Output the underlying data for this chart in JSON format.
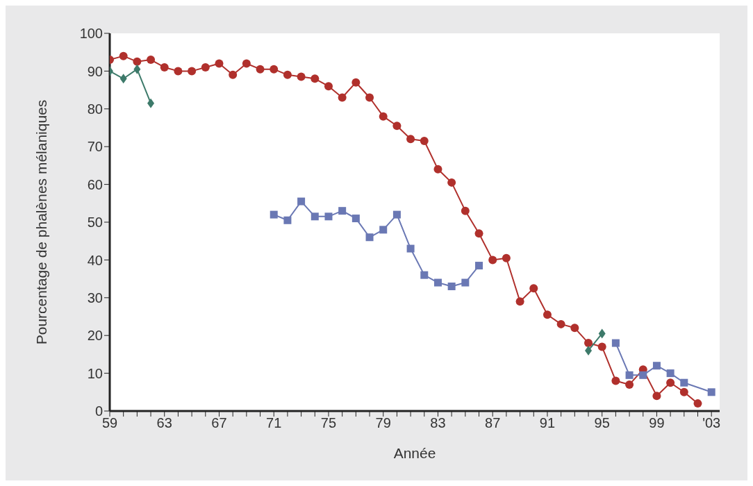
{
  "chart_data": {
    "type": "line",
    "xlabel": "Année",
    "ylabel": "Pourcentage de phalènes mélaniques",
    "series": [
      {
        "color": "#b0302c",
        "marker": "circle",
        "x": [
          1959,
          1960,
          1961,
          1962,
          1963,
          1964,
          1965,
          1966,
          1967,
          1968,
          1969,
          1970,
          1971,
          1972,
          1973,
          1974,
          1975,
          1976,
          1977,
          1978,
          1979,
          1980,
          1981,
          1982,
          1983,
          1984,
          1985,
          1986,
          1987,
          1988,
          1989,
          1990,
          1991,
          1992,
          1993,
          1994,
          1995,
          1996,
          1997,
          1998,
          1999,
          2000,
          2001,
          2002
        ],
        "values": [
          93,
          94,
          92.5,
          93,
          91,
          90,
          90,
          91,
          92,
          89,
          92,
          90.5,
          90.5,
          89,
          88.5,
          88,
          86,
          83,
          87,
          83,
          78,
          75.5,
          72,
          71.5,
          64,
          60.5,
          53,
          47,
          40,
          40.5,
          29,
          32.5,
          25.5,
          23,
          22,
          18,
          17,
          8,
          7,
          11,
          4,
          7.5,
          5,
          2
        ]
      },
      {
        "color": "#3d7a6a",
        "marker": "diamond",
        "x": [
          1959,
          1960,
          1961,
          1962,
          1978,
          1994,
          1995
        ],
        "values": [
          90,
          88,
          90.5,
          81.5,
          null,
          16,
          20.5
        ]
      },
      {
        "color": "#6a78b4",
        "marker": "square",
        "x": [
          1971,
          1972,
          1973,
          1974,
          1975,
          1976,
          1977,
          1978,
          1979,
          1980,
          1981,
          1982,
          1983,
          1984,
          1985,
          1986,
          1990,
          1996,
          1997,
          1998,
          1999,
          2000,
          2001,
          2003
        ],
        "values": [
          52,
          50.5,
          55.5,
          51.5,
          51.5,
          53,
          51,
          46,
          48,
          52,
          43,
          36,
          34,
          33,
          34,
          38.5,
          null,
          18,
          9.5,
          9.5,
          12,
          10,
          7.5,
          5
        ]
      }
    ],
    "xlim": [
      1959,
      2003.6
    ],
    "xticks": [
      {
        "value": 1959,
        "label": "59"
      },
      {
        "value": 1960,
        "label": null
      },
      {
        "value": 1961,
        "label": null
      },
      {
        "value": 1962,
        "label": null
      },
      {
        "value": 1963,
        "label": "63"
      },
      {
        "value": 1964,
        "label": null
      },
      {
        "value": 1965,
        "label": null
      },
      {
        "value": 1966,
        "label": null
      },
      {
        "value": 1967,
        "label": "67"
      },
      {
        "value": 1968,
        "label": null
      },
      {
        "value": 1969,
        "label": null
      },
      {
        "value": 1970,
        "label": null
      },
      {
        "value": 1971,
        "label": "71"
      },
      {
        "value": 1972,
        "label": null
      },
      {
        "value": 1973,
        "label": null
      },
      {
        "value": 1974,
        "label": null
      },
      {
        "value": 1975,
        "label": "75"
      },
      {
        "value": 1976,
        "label": null
      },
      {
        "value": 1977,
        "label": null
      },
      {
        "value": 1978,
        "label": null
      },
      {
        "value": 1979,
        "label": "79"
      },
      {
        "value": 1980,
        "label": null
      },
      {
        "value": 1981,
        "label": null
      },
      {
        "value": 1982,
        "label": null
      },
      {
        "value": 1983,
        "label": "83"
      },
      {
        "value": 1984,
        "label": null
      },
      {
        "value": 1985,
        "label": null
      },
      {
        "value": 1986,
        "label": null
      },
      {
        "value": 1987,
        "label": "87"
      },
      {
        "value": 1988,
        "label": null
      },
      {
        "value": 1989,
        "label": null
      },
      {
        "value": 1990,
        "label": null
      },
      {
        "value": 1991,
        "label": "91"
      },
      {
        "value": 1992,
        "label": null
      },
      {
        "value": 1993,
        "label": null
      },
      {
        "value": 1994,
        "label": null
      },
      {
        "value": 1995,
        "label": "95"
      },
      {
        "value": 1996,
        "label": null
      },
      {
        "value": 1997,
        "label": null
      },
      {
        "value": 1998,
        "label": null
      },
      {
        "value": 1999,
        "label": "99"
      },
      {
        "value": 2000,
        "label": null
      },
      {
        "value": 2001,
        "label": null
      },
      {
        "value": 2002,
        "label": null
      },
      {
        "value": 2003,
        "label": "'03"
      }
    ],
    "ylim": [
      0,
      100
    ],
    "yticks": [
      0,
      10,
      20,
      30,
      40,
      50,
      60,
      70,
      80,
      90,
      100
    ],
    "grid": false,
    "line_style": "solid"
  }
}
